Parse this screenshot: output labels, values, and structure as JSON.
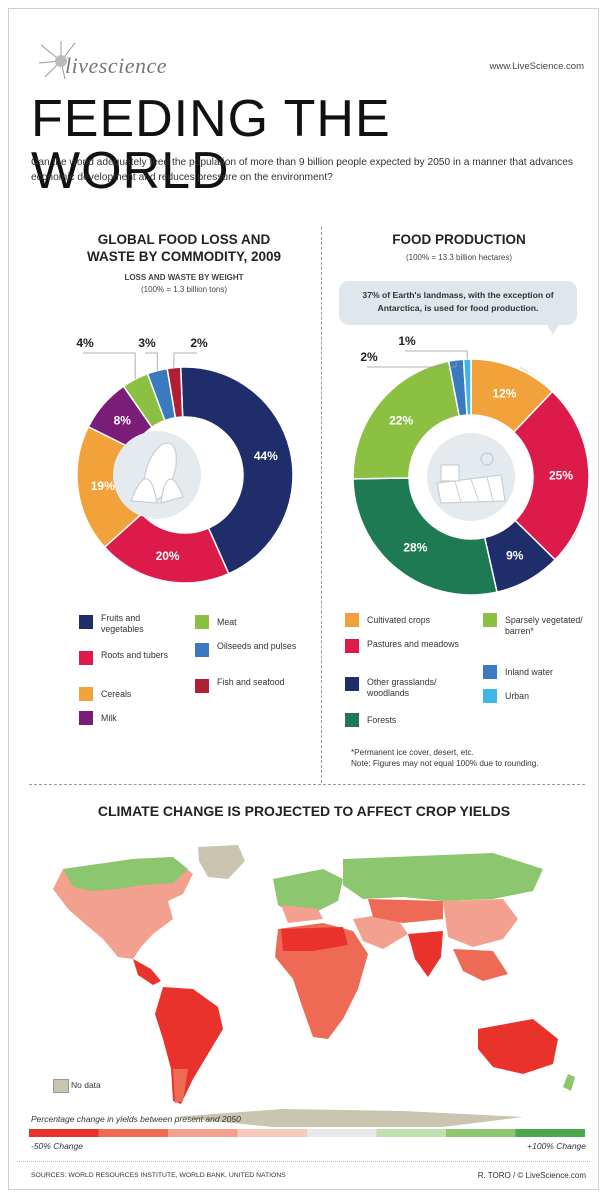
{
  "header": {
    "logo_text": "livescience",
    "url": "www.LiveScience.com",
    "title": "FEEDING THE WORLD",
    "subtitle": "Can the world adequately feed the population of more than 9 billion people expected by 2050 in a manner that advances economic development and reduces pressure on the environment?"
  },
  "left": {
    "heading": "GLOBAL FOOD LOSS AND WASTE BY COMMODITY, 2009",
    "subheading": "LOSS AND WASTE BY WEIGHT",
    "note": "(100% = 1.3 billion tons)",
    "legend": [
      "Fruits and vegetables",
      "Roots and tubers",
      "Cereals",
      "Milk",
      "Meat",
      "Oilseeds and pulses",
      "Fish and seafood"
    ]
  },
  "right": {
    "heading": "FOOD PRODUCTION",
    "note": "(100% = 13.3 billion hectares)",
    "callout": "37% of Earth's landmass, with the exception of Antarctica, is used for food production.",
    "legend": [
      "Cultivated crops",
      "Pastures and meadows",
      "Other grasslands/ woodlands",
      "Forests",
      "Sparsely vegetated/ barren*",
      "Inland water",
      "Urban"
    ],
    "footnote1": "*Permanent ice cover, desert, etc.",
    "footnote2": "Note: Figures may not equal 100% due to rounding."
  },
  "chart_data": [
    {
      "type": "pie",
      "title": "GLOBAL FOOD LOSS AND WASTE BY COMMODITY, 2009",
      "subtitle": "LOSS AND WASTE BY WEIGHT (100% = 1.3 billion tons)",
      "categories": [
        "Fruits and vegetables",
        "Roots and tubers",
        "Cereals",
        "Milk",
        "Meat",
        "Oilseeds and pulses",
        "Fish and seafood"
      ],
      "values": [
        44,
        20,
        19,
        8,
        4,
        3,
        2
      ],
      "labels": [
        "44%",
        "20%",
        "19%",
        "8%",
        "4%",
        "3%",
        "2%"
      ],
      "colors": [
        "#1f2d6b",
        "#dd1b4a",
        "#f2a23a",
        "#7a1d78",
        "#8cc043",
        "#3a7bbf",
        "#b01f33"
      ]
    },
    {
      "type": "pie",
      "title": "FOOD PRODUCTION",
      "subtitle": "(100% = 13.3 billion hectares)",
      "categories": [
        "Cultivated crops",
        "Pastures and meadows",
        "Other grasslands/ woodlands",
        "Forests",
        "Sparsely vegetated/ barren*",
        "Inland water",
        "Urban"
      ],
      "values": [
        12,
        25,
        9,
        28,
        22,
        2,
        1
      ],
      "labels": [
        "12%",
        "25%",
        "9%",
        "28%",
        "22%",
        "2%",
        "1%"
      ],
      "colors": [
        "#f2a23a",
        "#dd1b4a",
        "#1f2d6b",
        "#1e7a52",
        "#8cc043",
        "#3a7bbf",
        "#3fb4e8"
      ]
    }
  ],
  "map": {
    "heading": "CLIMATE CHANGE IS PROJECTED TO AFFECT CROP YIELDS",
    "no_data": "No data",
    "scale_label": "Percentage change in yields between present and 2050",
    "scale_min": "-50% Change",
    "scale_max": "+100% Change",
    "scale_colors": [
      "#e8322b",
      "#ef6a55",
      "#f3a08f",
      "#f5cabd",
      "#e8e8e8",
      "#bfe0b0",
      "#8cc66e",
      "#4aa84a"
    ]
  },
  "footer": {
    "sources": "SOURCES: WORLD RESOURCES INSTITUTE, WORLD BANK, UNITED NATIONS",
    "credit": "R. TORO / © LiveScience.com"
  }
}
